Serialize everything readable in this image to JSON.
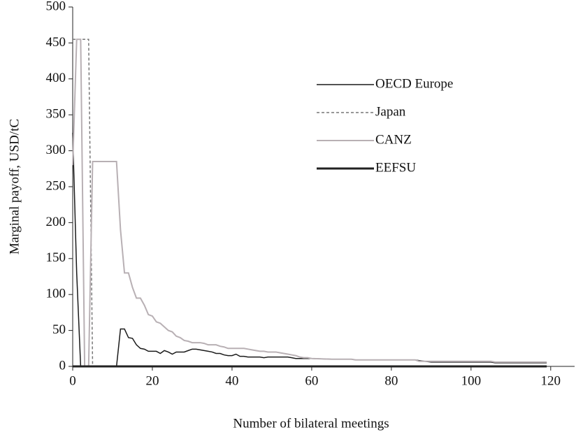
{
  "chart_data": {
    "type": "line",
    "x_label": "Number of bilateral meetings",
    "y_label": "Marginal payoff, USD/tC",
    "x": [
      0,
      1,
      2,
      3,
      4,
      5,
      6,
      7,
      8,
      9,
      10,
      11,
      12,
      13,
      14,
      15,
      16,
      17,
      18,
      19,
      20,
      21,
      22,
      23,
      24,
      25,
      26,
      27,
      28,
      29,
      30,
      31,
      32,
      33,
      34,
      35,
      36,
      37,
      38,
      39,
      40,
      41,
      42,
      43,
      44,
      45,
      46,
      47,
      48,
      49,
      50,
      51,
      52,
      53,
      54,
      55,
      56,
      57,
      58,
      59,
      60,
      65,
      70,
      71,
      75,
      80,
      86,
      87,
      90,
      95,
      100,
      105,
      106,
      110,
      115,
      119
    ],
    "series": [
      {
        "name": "OECD Europe",
        "color": "#1a1a1a",
        "values": [
          325,
          130,
          0,
          0,
          0,
          0,
          0,
          0,
          0,
          0,
          0,
          0,
          52,
          52,
          40,
          39,
          30,
          25,
          24,
          21,
          21,
          21,
          18,
          22,
          20,
          17,
          20,
          20,
          20,
          22,
          24,
          24,
          23,
          22,
          21,
          20,
          18,
          18,
          16,
          15,
          15,
          17,
          14,
          14,
          13,
          13,
          13,
          13,
          12,
          13,
          13,
          13,
          13,
          13,
          13,
          12,
          11,
          11,
          11,
          11,
          11,
          10,
          10,
          9,
          9,
          9,
          9,
          8,
          6,
          6,
          6,
          6,
          5,
          5,
          5,
          5
        ]
      },
      {
        "name": "Japan",
        "color": "#777777",
        "dashed": true,
        "values": [
          455,
          455,
          455,
          455,
          455,
          0,
          0,
          0,
          0,
          0,
          0,
          0,
          0,
          0,
          0,
          0,
          0,
          0,
          0,
          0,
          0,
          0,
          0,
          0,
          0,
          0,
          0,
          0,
          0,
          0,
          0,
          0,
          0,
          0,
          0,
          0,
          0,
          0,
          0,
          0,
          0,
          0,
          0,
          0,
          0,
          0,
          0,
          0,
          0,
          0,
          0,
          0,
          0,
          0,
          0,
          0,
          0,
          0,
          0,
          0,
          0,
          0,
          0,
          0,
          0,
          0,
          0,
          0,
          0,
          0,
          0,
          0,
          0,
          0,
          0,
          0
        ]
      },
      {
        "name": "CANZ",
        "color": "#b8b0b4",
        "values": [
          280,
          455,
          455,
          0,
          0,
          285,
          285,
          285,
          285,
          285,
          285,
          285,
          190,
          130,
          130,
          110,
          95,
          95,
          85,
          72,
          70,
          62,
          60,
          55,
          50,
          48,
          42,
          40,
          36,
          35,
          33,
          33,
          33,
          32,
          30,
          30,
          30,
          28,
          27,
          25,
          25,
          25,
          25,
          25,
          24,
          23,
          22,
          21,
          21,
          20,
          20,
          20,
          19,
          18,
          17,
          16,
          15,
          13,
          12,
          12,
          11,
          10,
          10,
          9,
          9,
          9,
          9,
          7,
          7,
          7,
          7,
          7,
          6,
          6,
          6,
          6
        ]
      },
      {
        "name": "EEFSU",
        "color": "#222222",
        "thick": true,
        "values": [
          0,
          0,
          0,
          0,
          0,
          0,
          0,
          0,
          0,
          0,
          0,
          0,
          0,
          0,
          0,
          0,
          0,
          0,
          0,
          0,
          0,
          0,
          0,
          0,
          0,
          0,
          0,
          0,
          0,
          0,
          0,
          0,
          0,
          0,
          0,
          0,
          0,
          0,
          0,
          0,
          0,
          0,
          0,
          0,
          0,
          0,
          0,
          0,
          0,
          0,
          0,
          0,
          0,
          0,
          0,
          0,
          0,
          0,
          0,
          0,
          0,
          0,
          0,
          0,
          0,
          0,
          0,
          0,
          0,
          0,
          0,
          0,
          0,
          0,
          0,
          0
        ]
      }
    ],
    "xlim": [
      0,
      126
    ],
    "ylim": [
      0,
      500
    ],
    "xticks": [
      0,
      20,
      40,
      60,
      80,
      100,
      120
    ],
    "yticks": [
      0,
      50,
      100,
      150,
      200,
      250,
      300,
      350,
      400,
      450,
      500
    ],
    "legend": "upper-right",
    "grid": false
  }
}
